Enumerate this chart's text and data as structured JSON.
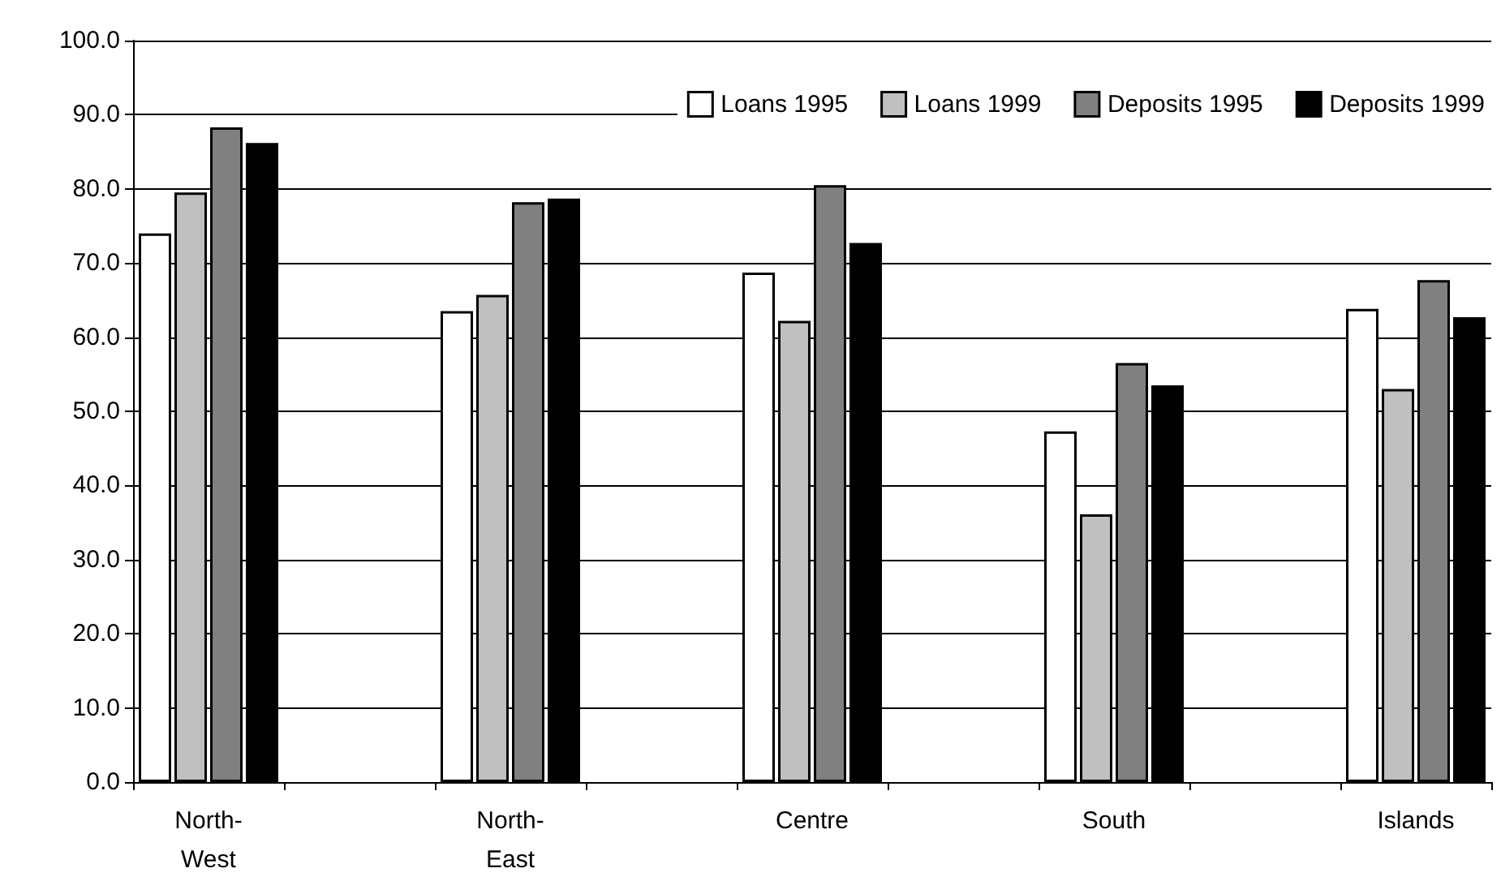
{
  "chart_data": {
    "type": "bar",
    "categories": [
      "North-West",
      null,
      "North-East",
      null,
      "Centre",
      null,
      "South",
      null,
      "Islands"
    ],
    "series": [
      {
        "name": "Loans 1995",
        "color": "#ffffff",
        "values": [
          74.0,
          null,
          63.5,
          null,
          68.7,
          null,
          47.3,
          null,
          63.8
        ]
      },
      {
        "name": "Loans 1999",
        "color": "#c0c0c0",
        "values": [
          79.5,
          null,
          65.7,
          null,
          62.2,
          null,
          36.1,
          null,
          53.0
        ]
      },
      {
        "name": "Deposits 1995",
        "color": "#808080",
        "values": [
          88.3,
          null,
          78.2,
          null,
          80.5,
          null,
          56.5,
          null,
          67.7
        ]
      },
      {
        "name": "Deposits 1999",
        "color": "#000000",
        "values": [
          86.2,
          null,
          78.7,
          null,
          72.7,
          null,
          53.5,
          null,
          62.7
        ]
      }
    ],
    "ylim": [
      0,
      100
    ],
    "yticks": [
      {
        "value": 0,
        "label": "0.0"
      },
      {
        "value": 10,
        "label": "10.0"
      },
      {
        "value": 20,
        "label": "20.0"
      },
      {
        "value": 30,
        "label": "30.0"
      },
      {
        "value": 40,
        "label": "40.0"
      },
      {
        "value": 50,
        "label": "50.0"
      },
      {
        "value": 60,
        "label": "60.0"
      },
      {
        "value": 70,
        "label": "70.0"
      },
      {
        "value": 80,
        "label": "80.0"
      },
      {
        "value": 90,
        "label": "90.0"
      },
      {
        "value": 100,
        "label": "100.0"
      }
    ],
    "grid": "y",
    "legend": "top right"
  }
}
